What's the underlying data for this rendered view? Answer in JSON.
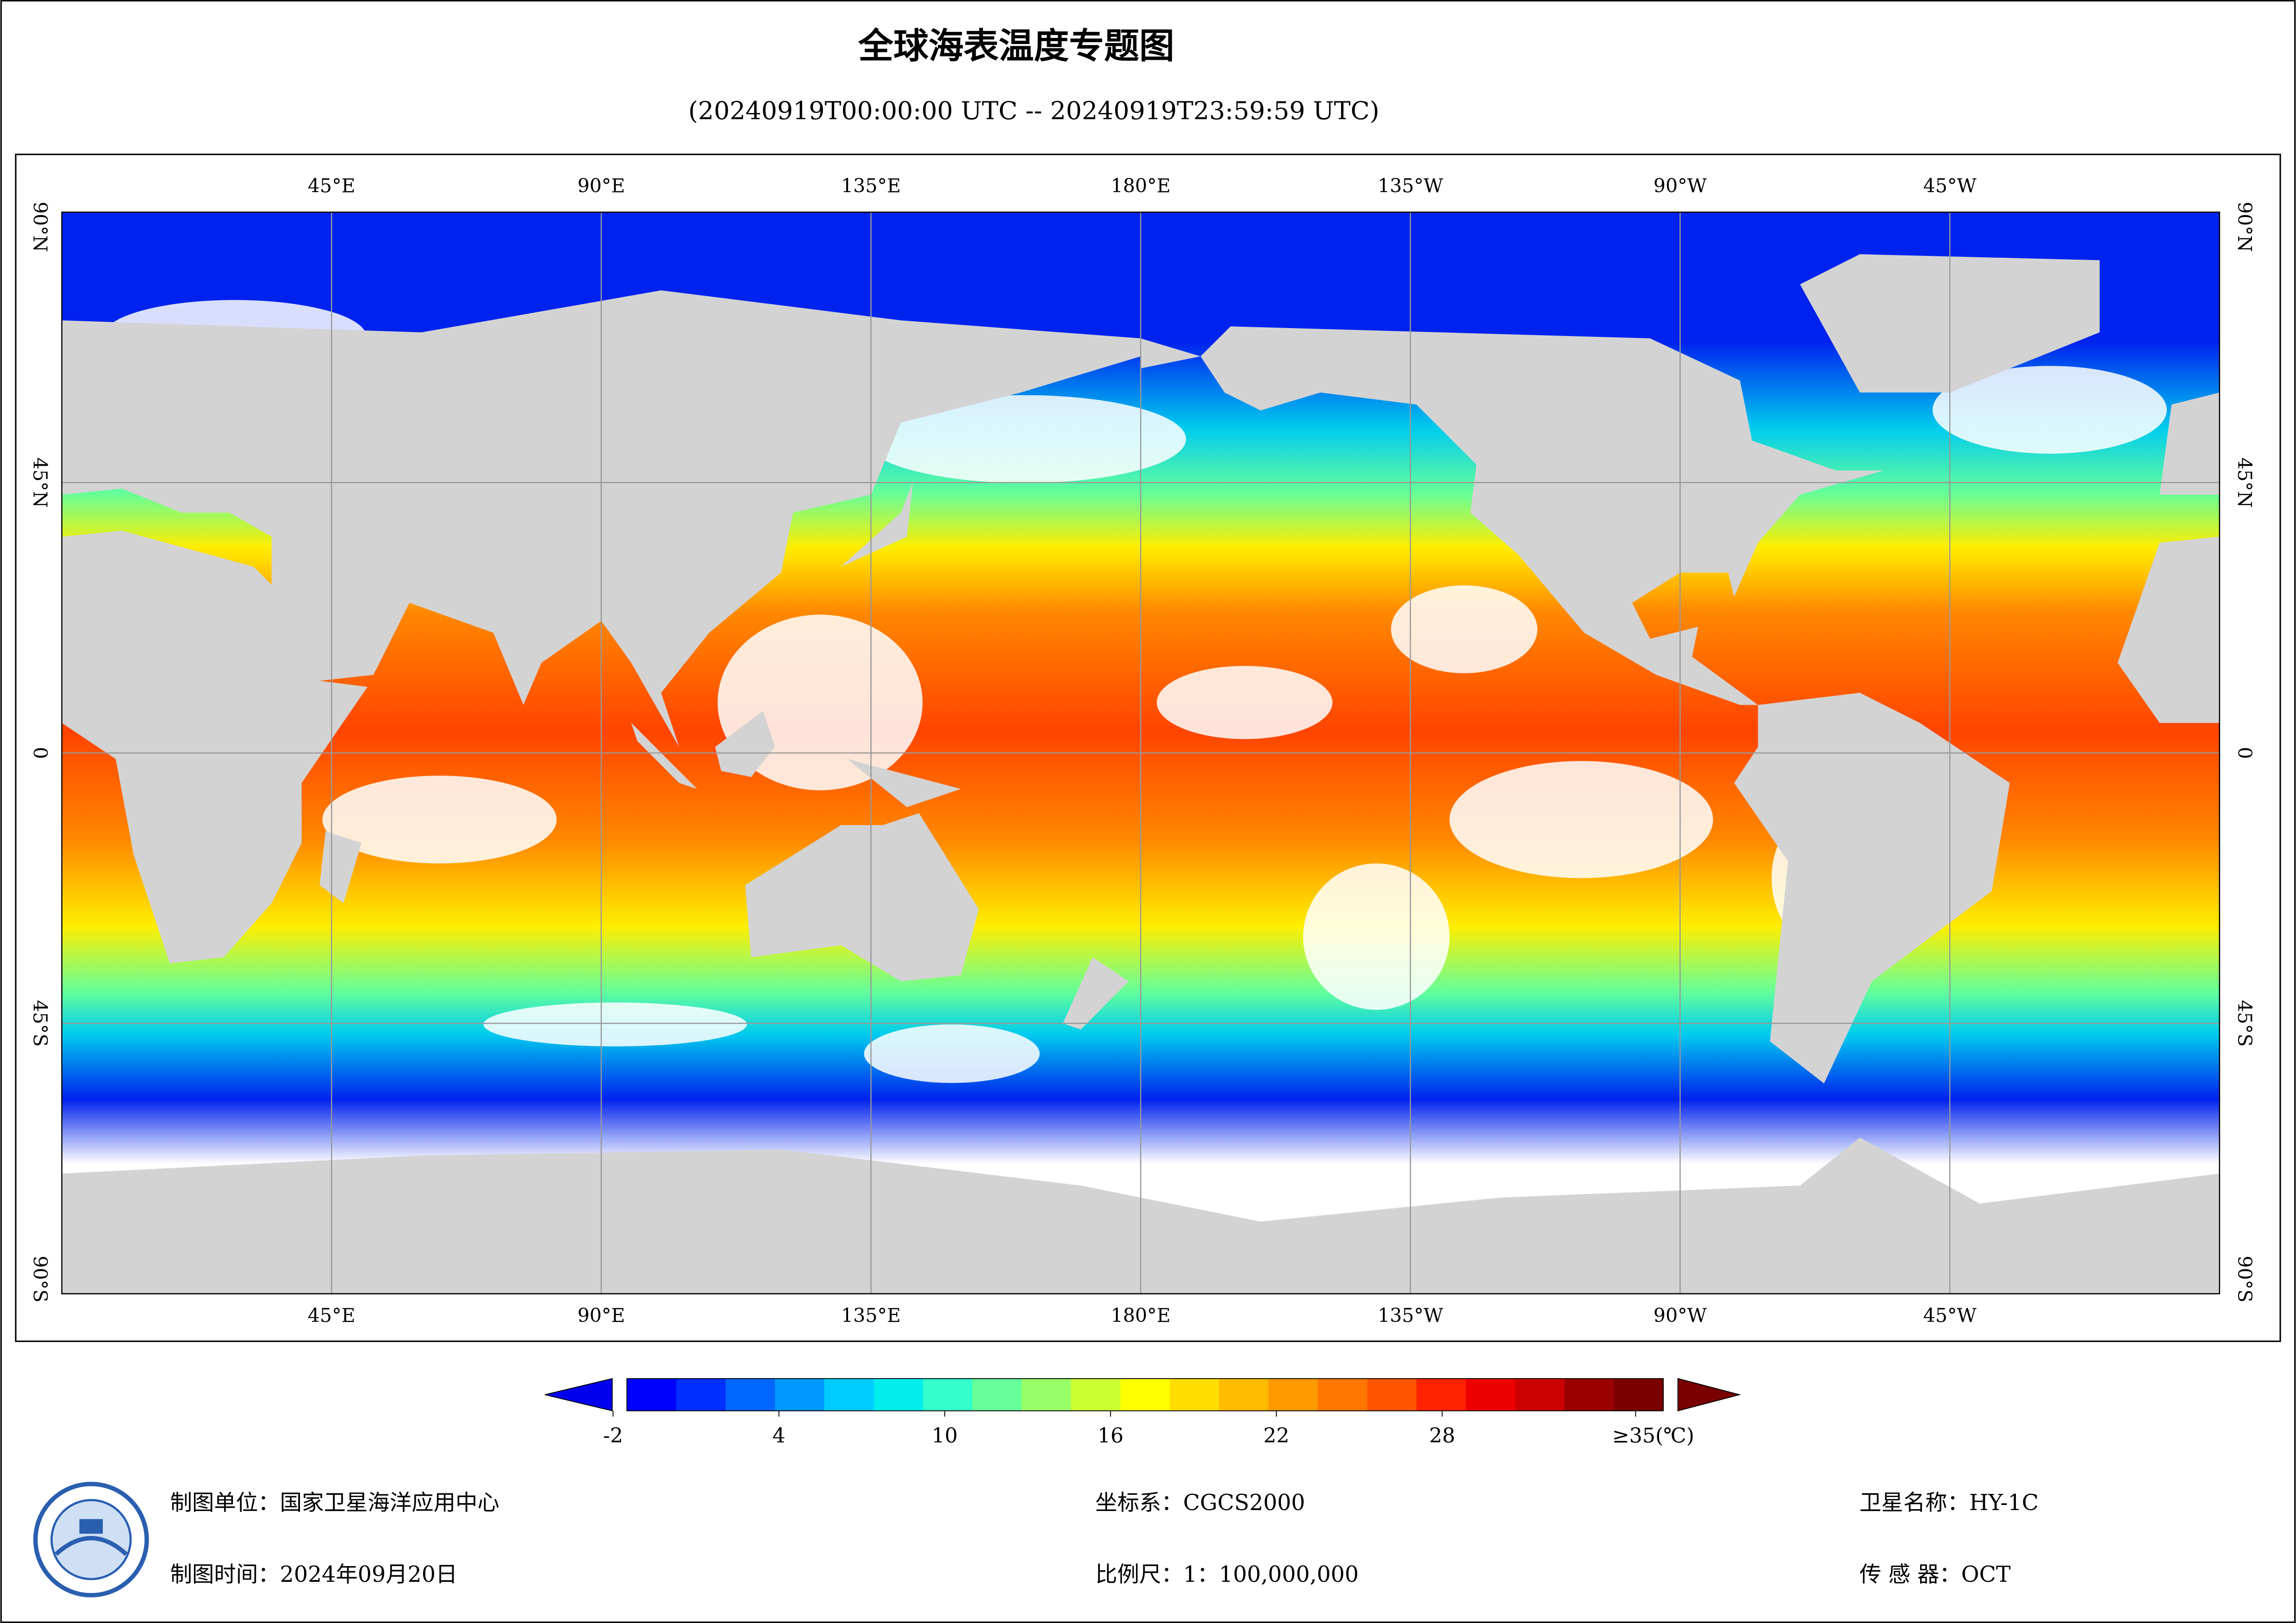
{
  "chart_data": {
    "type": "map",
    "title": "全球海表温度专题图",
    "subtitle": "(20240919T00:00:00 UTC -- 20240919T23:59:59 UTC)",
    "xlim": [
      0,
      360
    ],
    "ylim": [
      -90,
      90
    ],
    "xticks": [
      {
        "value": 45,
        "label": "45°E"
      },
      {
        "value": 90,
        "label": "90°E"
      },
      {
        "value": 135,
        "label": "135°E"
      },
      {
        "value": 180,
        "label": "180°E"
      },
      {
        "value": -135,
        "label": "135°W"
      },
      {
        "value": -90,
        "label": "90°W"
      },
      {
        "value": -45,
        "label": "45°W"
      }
    ],
    "yticks": [
      {
        "value": 90,
        "label": "90°N"
      },
      {
        "value": 45,
        "label": "45°N"
      },
      0,
      {
        "value": -45,
        "label": "45°S"
      },
      {
        "value": -90,
        "label": "90°S"
      }
    ],
    "grid": true,
    "land_color": "#d3d3d3",
    "colorbar": {
      "lim": [
        -1.5,
        36
      ],
      "ticks": [
        -2,
        4,
        10,
        16,
        22,
        28,
        {
          "value": 35,
          "label": "≥35(℃)"
        }
      ],
      "colors": [
        "#0000ff",
        "#0030ff",
        "#0066ff",
        "#0099ff",
        "#00ccff",
        "#00eeee",
        "#33ffcc",
        "#66ff99",
        "#99ff66",
        "#ccff33",
        "#ffff00",
        "#ffdd00",
        "#ffbb00",
        "#ff9900",
        "#ff7700",
        "#ff5500",
        "#ff2200",
        "#ee0000",
        "#cc0000",
        "#990000",
        "#7a0000"
      ]
    },
    "footer": {
      "unit": "制图单位：国家卫星海洋应用中心",
      "time": "制图时间：2024年09月20日",
      "crs": "坐标系：CGCS2000",
      "scale": "比例尺：1：100,000,000",
      "satellite": "卫星名称：HY-1C",
      "sensor": "传 感 器：OCT"
    }
  }
}
